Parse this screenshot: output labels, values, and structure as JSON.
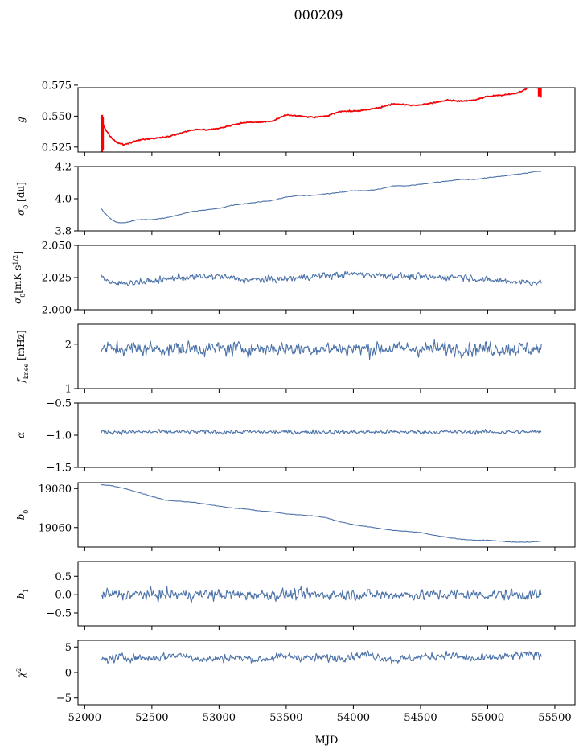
{
  "figure": {
    "title": "000209",
    "xlabel": "MJD"
  },
  "colors": {
    "series": "#4c72a8",
    "overlay": "#ff0000",
    "axis": "#000000",
    "background": "#ffffff"
  },
  "chart_data": {
    "type": "line",
    "shared_x": {
      "label": "MJD",
      "lim": [
        51950,
        55650
      ],
      "ticks": [
        52000,
        52500,
        53000,
        53500,
        54000,
        54500,
        55000,
        55500
      ],
      "data_range": [
        52120,
        55400
      ]
    },
    "panels": [
      {
        "id": "g",
        "ylabel": "g",
        "ylim": [
          0.521,
          0.573
        ],
        "yticks": [
          0.525,
          0.55,
          0.575
        ],
        "ytick_labels": [
          "0.525",
          "0.550",
          "0.575"
        ],
        "series": [
          {
            "style": "line",
            "color": "#4c72a8",
            "noise": 0.0006,
            "x": [
              52120,
              52130,
              52150,
              52200,
              52250,
              52300,
              52400,
              52500,
              52600,
              52700,
              52800,
              52900,
              53000,
              53100,
              53200,
              53300,
              53400,
              53500,
              53600,
              53700,
              53800,
              53900,
              54000,
              54100,
              54200,
              54300,
              54400,
              54500,
              54600,
              54700,
              54800,
              54900,
              55000,
              55100,
              55200,
              55250,
              55300,
              55350,
              55400
            ],
            "y": [
              0.548,
              0.545,
              0.54,
              0.532,
              0.528,
              0.527,
              0.531,
              0.532,
              0.533,
              0.536,
              0.539,
              0.539,
              0.54,
              0.543,
              0.545,
              0.545,
              0.546,
              0.551,
              0.55,
              0.549,
              0.55,
              0.554,
              0.554,
              0.555,
              0.557,
              0.56,
              0.559,
              0.559,
              0.561,
              0.563,
              0.562,
              0.563,
              0.566,
              0.567,
              0.568,
              0.57,
              0.573,
              0.573,
              0.573
            ]
          },
          {
            "style": "line",
            "color": "#ff0000",
            "noise": 0.0008,
            "x": [
              52120,
              52130,
              52150,
              52200,
              52250,
              52300,
              52400,
              52500,
              52600,
              52700,
              52800,
              52900,
              53000,
              53100,
              53200,
              53300,
              53400,
              53500,
              53600,
              53700,
              53800,
              53900,
              54000,
              54100,
              54200,
              54300,
              54400,
              54500,
              54600,
              54700,
              54800,
              54900,
              55000,
              55100,
              55200,
              55250,
              55300,
              55350,
              55400
            ],
            "y": [
              0.548,
              0.545,
              0.54,
              0.532,
              0.528,
              0.527,
              0.531,
              0.532,
              0.533,
              0.536,
              0.539,
              0.539,
              0.54,
              0.543,
              0.545,
              0.545,
              0.546,
              0.551,
              0.55,
              0.549,
              0.55,
              0.554,
              0.554,
              0.555,
              0.557,
              0.56,
              0.559,
              0.559,
              0.561,
              0.563,
              0.562,
              0.563,
              0.566,
              0.567,
              0.568,
              0.57,
              0.573,
              0.573,
              0.573
            ],
            "spikes": [
              {
                "x": 52130,
                "y0": 0.521,
                "y1": 0.551
              },
              {
                "x": 52136,
                "y0": 0.523,
                "y1": 0.549
              },
              {
                "x": 55380,
                "y0": 0.566,
                "y1": 0.574
              },
              {
                "x": 55396,
                "y0": 0.565,
                "y1": 0.573
              }
            ]
          }
        ]
      },
      {
        "id": "sigma0",
        "ylabel": "σ0 [du]",
        "ylim": [
          3.8,
          4.2
        ],
        "yticks": [
          3.8,
          4.0,
          4.2
        ],
        "ytick_labels": [
          "3.8",
          "4.0",
          "4.2"
        ],
        "series": [
          {
            "style": "line",
            "color": "#4c72a8",
            "noise": 0.003,
            "x": [
              52120,
              52150,
              52200,
              52250,
              52300,
              52400,
              52500,
              52600,
              52700,
              52800,
              52900,
              53000,
              53100,
              53200,
              53300,
              53400,
              53500,
              53600,
              53700,
              53800,
              53900,
              54000,
              54100,
              54200,
              54300,
              54400,
              54500,
              54600,
              54700,
              54800,
              54900,
              55000,
              55100,
              55200,
              55300,
              55350,
              55400
            ],
            "y": [
              3.94,
              3.91,
              3.87,
              3.85,
              3.85,
              3.87,
              3.87,
              3.88,
              3.9,
              3.92,
              3.93,
              3.94,
              3.96,
              3.97,
              3.98,
              3.99,
              4.01,
              4.02,
              4.02,
              4.03,
              4.04,
              4.05,
              4.05,
              4.06,
              4.08,
              4.08,
              4.09,
              4.1,
              4.11,
              4.12,
              4.12,
              4.13,
              4.14,
              4.15,
              4.16,
              4.17,
              4.17
            ]
          }
        ]
      },
      {
        "id": "sigma0-mks",
        "ylabel": "σ0[mK s1/2]",
        "ylim": [
          2.0,
          2.05
        ],
        "yticks": [
          2.0,
          2.025,
          2.05
        ],
        "ytick_labels": [
          "2.000",
          "2.025",
          "2.050"
        ],
        "series": [
          {
            "style": "line",
            "color": "#4c72a8",
            "noise": 0.0035,
            "x": [
              52120,
              52200,
              52300,
              52500,
              52700,
              53000,
              53200,
              53500,
              53700,
              53900,
              54000,
              54200,
              54400,
              54600,
              54800,
              55000,
              55200,
              55400
            ],
            "y": [
              2.027,
              2.02,
              2.021,
              2.022,
              2.025,
              2.026,
              2.023,
              2.024,
              2.026,
              2.027,
              2.028,
              2.027,
              2.026,
              2.025,
              2.026,
              2.023,
              2.022,
              2.021
            ]
          }
        ]
      },
      {
        "id": "fknee",
        "ylabel": "fknee [mHz]",
        "ylim": [
          1,
          2.45
        ],
        "yticks": [
          1,
          2
        ],
        "ytick_labels": [
          "1",
          "2"
        ],
        "series": [
          {
            "style": "line",
            "color": "#4c72a8",
            "noise": 0.22,
            "x": [
              52120,
              55400
            ],
            "y": [
              1.9,
              1.9
            ]
          }
        ]
      },
      {
        "id": "alpha",
        "ylabel": "α",
        "ylim": [
          -1.5,
          -0.5
        ],
        "yticks": [
          -1.5,
          -1.0,
          -0.5
        ],
        "ytick_labels": [
          "−1.5",
          "−1.0",
          "−0.5"
        ],
        "series": [
          {
            "style": "line",
            "color": "#4c72a8",
            "noise": 0.045,
            "x": [
              52120,
              55400
            ],
            "y": [
              -0.95,
              -0.95
            ]
          }
        ]
      },
      {
        "id": "b0",
        "ylabel": "b0",
        "ylim": [
          19050,
          19083
        ],
        "yticks": [
          19060,
          19080
        ],
        "ytick_labels": [
          "19060",
          "19080"
        ],
        "series": [
          {
            "style": "line",
            "color": "#4c72a8",
            "noise": 0.18,
            "x": [
              52120,
              52200,
              52300,
              52400,
              52500,
              52600,
              52700,
              52800,
              52900,
              53000,
              53100,
              53200,
              53300,
              53400,
              53500,
              53600,
              53700,
              53800,
              53900,
              54000,
              54100,
              54200,
              54300,
              54400,
              54500,
              54600,
              54700,
              54800,
              54900,
              55000,
              55100,
              55200,
              55300,
              55400
            ],
            "y": [
              19082,
              19081.5,
              19080,
              19078,
              19076,
              19074,
              19073.5,
              19073,
              19072,
              19071,
              19070,
              19069.5,
              19068.5,
              19068,
              19067,
              19066.5,
              19066,
              19065,
              19063,
              19061.5,
              19060.5,
              19059.5,
              19058.5,
              19058,
              19057.5,
              19056,
              19055,
              19054,
              19053.5,
              19053.5,
              19053,
              19052.5,
              19052.5,
              19053
            ]
          }
        ]
      },
      {
        "id": "b1",
        "ylabel": "b1",
        "ylim": [
          -0.85,
          0.9
        ],
        "yticks": [
          -0.5,
          0.0,
          0.5
        ],
        "ytick_labels": [
          "−0.5",
          "0.0",
          "0.5"
        ],
        "series": [
          {
            "style": "line",
            "color": "#4c72a8",
            "noise": 0.2,
            "x": [
              52120,
              55400
            ],
            "y": [
              0.0,
              0.0
            ]
          }
        ]
      },
      {
        "id": "chi2",
        "ylabel": "χ2",
        "ylim": [
          -6.3,
          6.3
        ],
        "yticks": [
          -5,
          0,
          5
        ],
        "ytick_labels": [
          "−5",
          "0",
          "5"
        ],
        "series": [
          {
            "style": "line",
            "color": "#4c72a8",
            "noise": 1.1,
            "x": [
              52120,
              52300,
              52500,
              52700,
              52900,
              53100,
              53300,
              53500,
              53700,
              53900,
              54100,
              54300,
              54500,
              54700,
              54900,
              55100,
              55300,
              55400
            ],
            "y": [
              2.5,
              3.0,
              2.8,
              3.5,
              2.5,
              3.0,
              2.5,
              3.2,
              2.8,
              3.0,
              3.6,
              2.5,
              3.0,
              3.4,
              2.6,
              3.0,
              3.5,
              3.5
            ]
          }
        ]
      }
    ]
  }
}
